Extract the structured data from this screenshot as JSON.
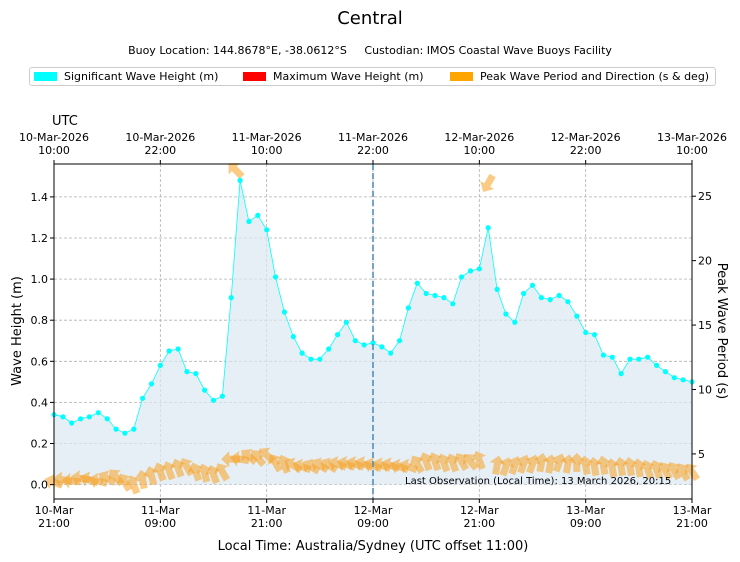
{
  "title": "Central",
  "subtitle": "Buoy Location: 144.8678°E, -38.0612°S     Custodian: IMOS Coastal Wave Buoys Facility",
  "legend": [
    {
      "label": "Significant Wave Height (m)",
      "color": "#00ffff"
    },
    {
      "label": "Maximum Wave Height (m)",
      "color": "#ff0000"
    },
    {
      "label": "Peak Wave Period and Direction (s & deg)",
      "color": "#ffa500"
    }
  ],
  "chart_data": {
    "type": "line",
    "title": "Central",
    "utc_label": "UTC",
    "top_ticks": [
      "10-Mar-2026\n10:00",
      "10-Mar-2026\n22:00",
      "11-Mar-2026\n10:00",
      "11-Mar-2026\n22:00",
      "12-Mar-2026\n10:00",
      "12-Mar-2026\n22:00",
      "13-Mar-2026\n10:00"
    ],
    "bottom_ticks": [
      "10-Mar\n21:00",
      "11-Mar\n09:00",
      "11-Mar\n21:00",
      "12-Mar\n09:00",
      "12-Mar\n21:00",
      "13-Mar\n09:00",
      "13-Mar\n21:00"
    ],
    "xlabel": "Local Time: Australia/Sydney (UTC offset 11:00)",
    "ylabel": "Wave Height (m)",
    "y2label": "Peak Wave Period (s)",
    "x_unit": "hours since 10-Mar 21:00 local",
    "xlim": [
      0,
      72
    ],
    "ylim": [
      -0.07,
      1.56
    ],
    "y_ticks": [
      0.0,
      0.2,
      0.4,
      0.6,
      0.8,
      1.0,
      1.2,
      1.4
    ],
    "y2lim": [
      1.5,
      27.5
    ],
    "y2_ticks": [
      5,
      10,
      15,
      20,
      25
    ],
    "grid": true,
    "marker_x": 36,
    "annotation": "Last Observation (Local Time): 13 March 2026, 20:15",
    "series": [
      {
        "name": "Significant Wave Height (m)",
        "color": "#00ffff",
        "x": [
          0,
          1,
          2,
          3,
          4,
          5,
          6,
          7,
          8,
          9,
          10,
          11,
          12,
          13,
          14,
          15,
          16,
          17,
          18,
          19,
          20,
          21,
          22,
          23,
          24,
          25,
          26,
          27,
          28,
          29,
          30,
          31,
          32,
          33,
          34,
          35,
          36,
          37,
          38,
          39,
          40,
          41,
          42,
          43,
          44,
          45,
          46,
          47,
          48,
          49,
          50,
          51,
          52,
          53,
          54,
          55,
          56,
          57,
          58,
          59,
          60,
          61,
          62,
          63,
          64,
          65,
          66,
          67,
          68,
          69,
          70,
          71,
          72
        ],
        "values": [
          0.34,
          0.33,
          0.3,
          0.32,
          0.33,
          0.35,
          0.32,
          0.27,
          0.25,
          0.27,
          0.42,
          0.49,
          0.58,
          0.65,
          0.66,
          0.55,
          0.54,
          0.46,
          0.41,
          0.43,
          0.91,
          1.48,
          1.28,
          1.31,
          1.24,
          1.01,
          0.84,
          0.72,
          0.64,
          0.61,
          0.61,
          0.66,
          0.73,
          0.79,
          0.7,
          0.68,
          0.69,
          0.67,
          0.64,
          0.7,
          0.86,
          0.98,
          0.93,
          0.92,
          0.91,
          0.88,
          1.01,
          1.04,
          1.05,
          1.25,
          0.95,
          0.83,
          0.79,
          0.93,
          0.97,
          0.91,
          0.9,
          0.92,
          0.89,
          0.82,
          0.74,
          0.73,
          0.63,
          0.62,
          0.54,
          0.61,
          0.61,
          0.62,
          0.58,
          0.55,
          0.52,
          0.51,
          0.5
        ]
      },
      {
        "name": "Peak Wave Period and Direction (s & deg)",
        "color": "#ffa500",
        "note": "period values in seconds, direction as arrow bearing in degrees",
        "x": [
          0,
          1,
          2,
          3,
          4,
          5,
          6,
          7,
          8,
          9,
          10,
          11,
          12,
          13,
          14,
          15,
          16,
          17,
          18,
          19,
          20,
          21,
          22,
          23,
          24,
          25,
          26,
          27,
          28,
          29,
          30,
          31,
          32,
          33,
          34,
          35,
          36,
          37,
          38,
          39,
          40,
          41,
          42,
          43,
          44,
          45,
          46,
          47,
          48,
          49,
          50,
          51,
          52,
          53,
          54,
          55,
          56,
          57,
          58,
          59,
          60,
          61,
          62,
          63,
          64,
          65,
          66,
          67,
          68,
          69,
          70,
          71,
          72
        ],
        "values": [
          2.8,
          3.0,
          2.9,
          3.1,
          3.0,
          2.9,
          3.1,
          3.2,
          2.8,
          2.6,
          3.0,
          3.3,
          3.6,
          3.7,
          3.9,
          4.0,
          3.6,
          3.5,
          3.4,
          3.6,
          4.6,
          4.6,
          4.8,
          4.7,
          4.9,
          4.3,
          4.2,
          4.1,
          4.0,
          4.0,
          4.1,
          4.1,
          4.2,
          4.2,
          4.2,
          4.2,
          4.1,
          4.1,
          4.1,
          4.0,
          4.0,
          4.2,
          4.4,
          4.4,
          4.3,
          4.3,
          4.4,
          4.4,
          4.5,
          26.0,
          4.1,
          4.0,
          4.1,
          4.2,
          4.2,
          4.3,
          4.2,
          4.3,
          4.2,
          4.3,
          4.1,
          4.0,
          4.1,
          3.9,
          4.0,
          4.0,
          3.9,
          3.8,
          3.8,
          3.7,
          3.7,
          3.6,
          3.6
        ],
        "directions": [
          110,
          100,
          95,
          100,
          110,
          105,
          120,
          140,
          150,
          160,
          170,
          165,
          160,
          160,
          160,
          150,
          160,
          165,
          160,
          150,
          90,
          100,
          130,
          140,
          130,
          150,
          160,
          120,
          110,
          120,
          120,
          120,
          110,
          110,
          110,
          110,
          110,
          110,
          110,
          110,
          110,
          150,
          160,
          160,
          160,
          160,
          150,
          140,
          160,
          30,
          190,
          200,
          200,
          200,
          200,
          190,
          190,
          200,
          190,
          180,
          170,
          170,
          170,
          170,
          170,
          170,
          170,
          160,
          160,
          150,
          150,
          150,
          145
        ]
      }
    ],
    "spike_arrow": {
      "x": 20.5,
      "y_m": 1.53,
      "direction": 135
    }
  }
}
